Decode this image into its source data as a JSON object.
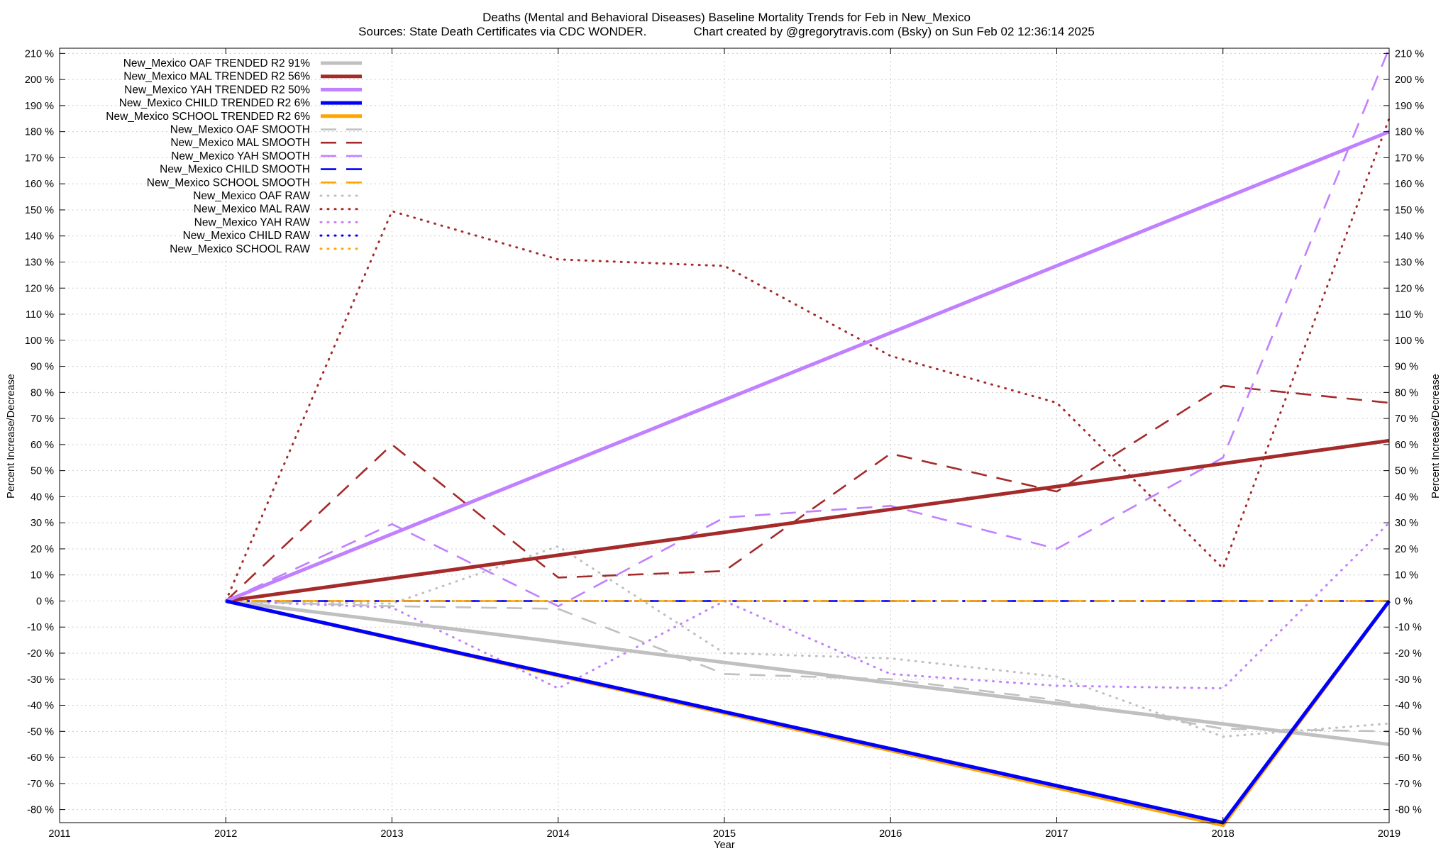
{
  "chart_data": {
    "type": "line",
    "title": "Deaths (Mental and Behavioral Diseases)  Baseline Mortality Trends for Feb in New_Mexico",
    "subtitle": "Sources: State Death Certificates via CDC WONDER.              Chart created by @gregorytravis.com (Bsky) on Sun Feb 02 12:36:14 2025",
    "xlabel": "Year",
    "ylabel": "Percent Increase/Decrease",
    "y2label": "Percent Increase/Decrease",
    "xlim": [
      2011,
      2019
    ],
    "ylim": [
      -85,
      212
    ],
    "xticks": [
      "2011",
      "2012",
      "2013",
      "2014",
      "2015",
      "2016",
      "2017",
      "2018",
      "2019"
    ],
    "yticks_left": [
      "210 %",
      "200 %",
      "190 %",
      "180 %",
      "170 %",
      "160 %",
      "150 %",
      "140 %",
      "130 %",
      "120 %",
      "110 %",
      "100 %",
      "90 %",
      "80 %",
      "70 %",
      "60 %",
      "50 %",
      "40 %",
      "30 %",
      "20 %",
      "10 %",
      "0 %",
      "-10 %",
      "-20 %",
      "-30 %",
      "-40 %",
      "-50 %",
      "-60 %",
      "-70 %",
      "-80 %"
    ],
    "yticks_right": [
      "210 %",
      "200 %",
      "190 %",
      "180 %",
      "170 %",
      "160 %",
      "150 %",
      "140 %",
      "130 %",
      "120 %",
      "110 %",
      "100 %",
      "90 %",
      "80 %",
      "70 %",
      "60 %",
      "50 %",
      "40 %",
      "30 %",
      "20 %",
      "10 %",
      "0 %",
      "-10 %",
      "-20 %",
      "-30 %",
      "-40 %",
      "-50 %",
      "-60 %",
      "-70 %",
      "-80 %"
    ],
    "grid": true,
    "legend_position": "top-left",
    "series": [
      {
        "name": "New_Mexico OAF TRENDED R2  91%",
        "style": "solid",
        "color": "#c0c0c0",
        "x": [
          2012,
          2019
        ],
        "y": [
          0,
          -55
        ]
      },
      {
        "name": "New_Mexico MAL TRENDED R2  56%",
        "style": "solid",
        "color": "#a52a2a",
        "x": [
          2012,
          2019
        ],
        "y": [
          0,
          61.5
        ]
      },
      {
        "name": "New_Mexico YAH TRENDED R2  50%",
        "style": "solid",
        "color": "#c080ff",
        "x": [
          2012,
          2019
        ],
        "y": [
          0,
          180
        ]
      },
      {
        "name": "New_Mexico CHILD TRENDED R2   6%",
        "style": "solid",
        "color": "#0000ff",
        "x": [
          2012,
          2018,
          2019
        ],
        "y": [
          0,
          -85,
          0
        ]
      },
      {
        "name": "New_Mexico SCHOOL TRENDED R2   6%",
        "style": "solid",
        "color": "#ffa500",
        "x": [
          2012,
          2018,
          2019
        ],
        "y": [
          0,
          -86,
          0
        ]
      },
      {
        "name": "New_Mexico OAF SMOOTH",
        "style": "dashed",
        "color": "#c0c0c0",
        "x": [
          2012,
          2013,
          2014,
          2015,
          2016,
          2017,
          2018,
          2019
        ],
        "y": [
          0,
          -2,
          -3,
          -28,
          -30,
          -38,
          -49,
          -50
        ]
      },
      {
        "name": "New_Mexico MAL SMOOTH",
        "style": "dashed",
        "color": "#a52a2a",
        "x": [
          2012,
          2013,
          2014,
          2015,
          2016,
          2017,
          2018,
          2019
        ],
        "y": [
          0,
          60,
          9,
          11.5,
          56.5,
          42,
          82.5,
          76
        ]
      },
      {
        "name": "New_Mexico YAH SMOOTH",
        "style": "dashed",
        "color": "#c080ff",
        "x": [
          2012,
          2013,
          2014,
          2015,
          2016,
          2017,
          2018,
          2019
        ],
        "y": [
          0,
          29.5,
          -2,
          32,
          36.5,
          20,
          55,
          212
        ]
      },
      {
        "name": "New_Mexico CHILD SMOOTH",
        "style": "dashed",
        "color": "#0000ff",
        "x": [
          2012,
          2019
        ],
        "y": [
          0,
          0
        ]
      },
      {
        "name": "New_Mexico SCHOOL SMOOTH",
        "style": "dashed",
        "color": "#ffa500",
        "x": [
          2012,
          2019
        ],
        "y": [
          0,
          0
        ]
      },
      {
        "name": "New_Mexico OAF RAW",
        "style": "dotted",
        "color": "#c0c0c0",
        "x": [
          2012,
          2013,
          2014,
          2015,
          2016,
          2017,
          2018,
          2019
        ],
        "y": [
          0,
          -1,
          21,
          -20,
          -22,
          -29,
          -52,
          -47
        ]
      },
      {
        "name": "New_Mexico MAL RAW",
        "style": "dotted",
        "color": "#a52a2a",
        "x": [
          2012,
          2013,
          2014,
          2015,
          2016,
          2017,
          2018,
          2019
        ],
        "y": [
          0,
          149.5,
          131,
          128.5,
          94,
          76,
          12.5,
          185
        ]
      },
      {
        "name": "New_Mexico YAH RAW",
        "style": "dotted",
        "color": "#c080ff",
        "x": [
          2012,
          2013,
          2014,
          2015,
          2016,
          2017,
          2018,
          2019
        ],
        "y": [
          0,
          -2.5,
          -33.5,
          0,
          -28,
          -32.5,
          -33.5,
          30
        ]
      },
      {
        "name": "New_Mexico CHILD RAW",
        "style": "dotted",
        "color": "#0000ff",
        "x": [
          2012,
          2019
        ],
        "y": [
          0,
          0
        ]
      },
      {
        "name": "New_Mexico SCHOOL RAW",
        "style": "dotted",
        "color": "#ffa500",
        "x": [
          2012,
          2019
        ],
        "y": [
          0,
          0
        ]
      }
    ]
  }
}
